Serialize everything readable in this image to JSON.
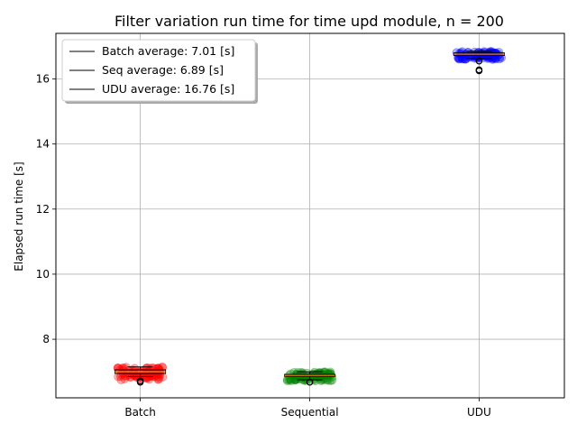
{
  "chart_data": {
    "type": "box+scatter",
    "title": "Filter variation run time for time upd module, n = 200",
    "ylabel": "Elapsed run time [s]",
    "xlabel": "",
    "categories": [
      "Batch",
      "Sequential",
      "UDU"
    ],
    "ylim": [
      6.2,
      17.4
    ],
    "yticks": [
      8,
      10,
      12,
      14,
      16
    ],
    "grid": true,
    "legend_position": "top-left",
    "legend": [
      {
        "label": "Batch average: 7.01 [s]"
      },
      {
        "label": "Seq average: 6.89 [s]"
      },
      {
        "label": "UDU average: 16.76 [s]"
      }
    ],
    "series": [
      {
        "name": "Batch",
        "color": "#ff0000",
        "median": 7.0,
        "q1": 6.95,
        "q3": 7.06,
        "whisker_low": 6.85,
        "whisker_high": 7.15,
        "outliers": [
          6.72,
          6.68
        ],
        "spread": [
          6.75,
          7.15
        ]
      },
      {
        "name": "Sequential",
        "color": "#008000",
        "median": 6.89,
        "q1": 6.86,
        "q3": 6.92,
        "whisker_low": 6.75,
        "whisker_high": 7.0,
        "outliers": [
          6.68
        ],
        "spread": [
          6.72,
          7.0
        ]
      },
      {
        "name": "UDU",
        "color": "#0000ff",
        "median": 16.76,
        "q1": 16.72,
        "q3": 16.8,
        "whisker_low": 16.62,
        "whisker_high": 16.85,
        "outliers": [
          16.55,
          16.28,
          16.25
        ],
        "spread": [
          16.6,
          16.85
        ]
      }
    ]
  }
}
